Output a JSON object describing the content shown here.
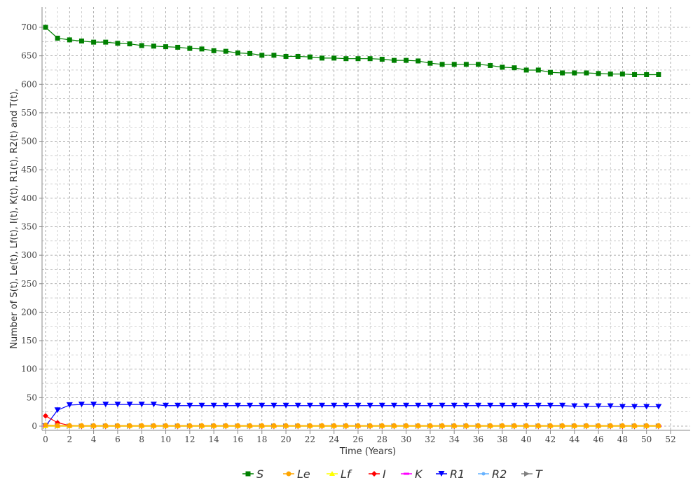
{
  "chart_data": {
    "type": "line",
    "title": "",
    "xlabel": "Time (Years)",
    "ylabel": "Number of S(t), Le(t), Lf(t), I(t), K(t), R1(t), R2(t) and T(t),",
    "xlim": [
      0,
      52
    ],
    "ylim": [
      0,
      720
    ],
    "x_ticks": [
      0,
      2,
      4,
      6,
      8,
      10,
      12,
      14,
      16,
      18,
      20,
      22,
      24,
      26,
      28,
      30,
      32,
      34,
      36,
      38,
      40,
      42,
      44,
      46,
      48,
      50,
      52
    ],
    "y_ticks": [
      0,
      50,
      100,
      150,
      200,
      250,
      300,
      350,
      400,
      450,
      500,
      550,
      600,
      650,
      700
    ],
    "grid": true,
    "legend_position": "bottom",
    "x": [
      0,
      1,
      2,
      3,
      4,
      5,
      6,
      7,
      8,
      9,
      10,
      11,
      12,
      13,
      14,
      15,
      16,
      17,
      18,
      19,
      20,
      21,
      22,
      23,
      24,
      25,
      26,
      27,
      28,
      29,
      30,
      31,
      32,
      33,
      34,
      35,
      36,
      37,
      38,
      39,
      40,
      41,
      42,
      43,
      44,
      45,
      46,
      47,
      48,
      49,
      50,
      51
    ],
    "series": [
      {
        "name": "S",
        "color": "#008000",
        "marker": "square",
        "values": [
          700,
          681,
          678,
          676,
          674,
          674,
          672,
          671,
          668,
          667,
          666,
          665,
          663,
          662,
          659,
          658,
          655,
          654,
          651,
          651,
          649,
          649,
          648,
          646,
          646,
          645,
          645,
          645,
          644,
          642,
          642,
          641,
          637,
          635,
          635,
          635,
          635,
          633,
          630,
          629,
          625,
          625,
          621,
          620,
          620,
          620,
          619,
          618,
          618,
          617,
          617,
          617
        ]
      },
      {
        "name": "Le",
        "color": "#FFA500",
        "marker": "circle",
        "values": [
          2,
          1,
          1,
          1,
          1,
          1,
          1,
          1,
          1,
          1,
          1,
          1,
          1,
          1,
          1,
          1,
          1,
          1,
          1,
          1,
          1,
          1,
          1,
          1,
          1,
          1,
          1,
          1,
          1,
          1,
          1,
          1,
          1,
          1,
          1,
          1,
          1,
          1,
          1,
          1,
          1,
          1,
          1,
          1,
          1,
          1,
          1,
          1,
          1,
          1,
          1,
          1
        ]
      },
      {
        "name": "Lf",
        "color": "#FFFF00",
        "marker": "triangle-up",
        "values": [
          0,
          0,
          0,
          0,
          0,
          0,
          0,
          0,
          0,
          0,
          0,
          0,
          0,
          0,
          0,
          0,
          0,
          0,
          0,
          0,
          0,
          0,
          0,
          0,
          0,
          0,
          0,
          0,
          0,
          0,
          0,
          0,
          0,
          0,
          0,
          0,
          0,
          0,
          0,
          0,
          0,
          0,
          0,
          0,
          0,
          0,
          0,
          0,
          0,
          0,
          0,
          0
        ]
      },
      {
        "name": "I",
        "color": "#FF0000",
        "marker": "diamond",
        "values": [
          18,
          6,
          1,
          0,
          0,
          0,
          0,
          0,
          0,
          0,
          0,
          0,
          0,
          0,
          0,
          0,
          0,
          0,
          0,
          0,
          0,
          0,
          0,
          0,
          0,
          0,
          0,
          0,
          0,
          0,
          0,
          0,
          0,
          0,
          0,
          0,
          0,
          0,
          0,
          0,
          0,
          0,
          0,
          0,
          0,
          0,
          0,
          0,
          0,
          0,
          0,
          0
        ]
      },
      {
        "name": "K",
        "color": "#FF00FF",
        "marker": "dash",
        "values": [
          0,
          0,
          0,
          0,
          0,
          0,
          0,
          0,
          0,
          0,
          0,
          0,
          0,
          0,
          0,
          0,
          0,
          0,
          0,
          0,
          0,
          0,
          0,
          0,
          0,
          0,
          0,
          0,
          0,
          0,
          0,
          0,
          0,
          0,
          0,
          0,
          0,
          0,
          0,
          0,
          0,
          0,
          0,
          0,
          0,
          0,
          0,
          0,
          0,
          0,
          0,
          0
        ]
      },
      {
        "name": "R1",
        "color": "#0000FF",
        "marker": "triangle-down",
        "values": [
          0,
          28,
          37,
          38,
          38,
          38,
          38,
          38,
          38,
          38,
          36,
          36,
          36,
          36,
          36,
          36,
          36,
          36,
          36,
          36,
          36,
          36,
          36,
          36,
          36,
          36,
          36,
          36,
          36,
          36,
          36,
          36,
          36,
          36,
          36,
          36,
          36,
          36,
          36,
          36,
          36,
          36,
          36,
          36,
          35,
          35,
          35,
          35,
          34,
          34,
          34,
          34
        ]
      },
      {
        "name": "R2",
        "color": "#66B2FF",
        "marker": "circle-small",
        "values": [
          0,
          0,
          0,
          0,
          0,
          0,
          0,
          0,
          0,
          0,
          0,
          0,
          0,
          0,
          0,
          0,
          0,
          0,
          0,
          0,
          0,
          0,
          0,
          0,
          0,
          0,
          0,
          0,
          0,
          0,
          0,
          0,
          0,
          0,
          0,
          0,
          0,
          0,
          0,
          0,
          0,
          0,
          0,
          0,
          0,
          0,
          0,
          0,
          0,
          0,
          0,
          0
        ]
      },
      {
        "name": "T",
        "color": "#808080",
        "marker": "triangle-right",
        "values": [
          0,
          0,
          0,
          0,
          0,
          0,
          0,
          0,
          0,
          0,
          0,
          0,
          0,
          0,
          0,
          0,
          0,
          0,
          0,
          0,
          0,
          0,
          0,
          0,
          0,
          0,
          0,
          0,
          0,
          0,
          0,
          0,
          0,
          0,
          0,
          0,
          0,
          0,
          0,
          0,
          0,
          0,
          0,
          0,
          0,
          0,
          0,
          0,
          0,
          0,
          0,
          0
        ]
      }
    ]
  }
}
